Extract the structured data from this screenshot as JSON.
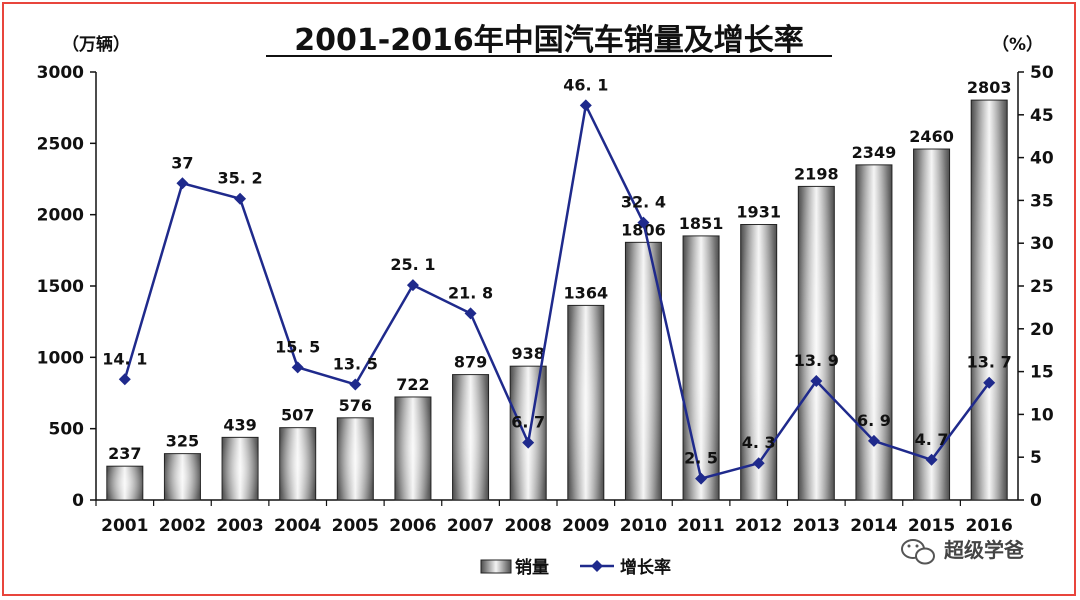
{
  "chart_data": {
    "type": "bar+line",
    "title": "2001-2016年中国汽车销量及增长率",
    "ylabel_left": "（万辆）",
    "ylabel_right": "（%）",
    "categories": [
      "2001",
      "2002",
      "2003",
      "2004",
      "2005",
      "2006",
      "2007",
      "2008",
      "2009",
      "2010",
      "2011",
      "2012",
      "2013",
      "2014",
      "2015",
      "2016"
    ],
    "series": [
      {
        "name": "销量",
        "type": "bar",
        "axis": "left",
        "values": [
          237,
          325,
          439,
          507,
          576,
          722,
          879,
          938,
          1364,
          1806,
          1851,
          1931,
          2198,
          2349,
          2460,
          2803
        ]
      },
      {
        "name": "增长率",
        "type": "line",
        "axis": "right",
        "values": [
          14.1,
          37,
          35.2,
          15.5,
          13.5,
          25.1,
          21.8,
          6.7,
          46.1,
          32.4,
          2.5,
          4.3,
          13.9,
          6.9,
          4.7,
          13.7
        ],
        "labels": [
          "14. 1",
          "37",
          "35. 2",
          "15. 5",
          "13. 5",
          "25. 1",
          "21. 8",
          "6. 7",
          "46. 1",
          "32. 4",
          "2. 5",
          "4. 3",
          "13. 9",
          "6. 9",
          "4. 7",
          "13. 7"
        ]
      }
    ],
    "yleft_ticks": [
      "0",
      "500",
      "1000",
      "1500",
      "2000",
      "2500",
      "3000"
    ],
    "yleft_lim": [
      0,
      3000
    ],
    "yright_ticks": [
      "0",
      "5",
      "10",
      "15",
      "20",
      "25",
      "30",
      "35",
      "40",
      "45",
      "50"
    ],
    "yright_lim": [
      0,
      50
    ],
    "legend_position": "bottom",
    "colors": {
      "bar_dark": "#555555",
      "bar_light": "#f2f2f2",
      "line": "#1f2a8c",
      "border": "#e8453c"
    }
  },
  "watermark": {
    "text": "超级学爸",
    "icon": "wechat-icon"
  }
}
